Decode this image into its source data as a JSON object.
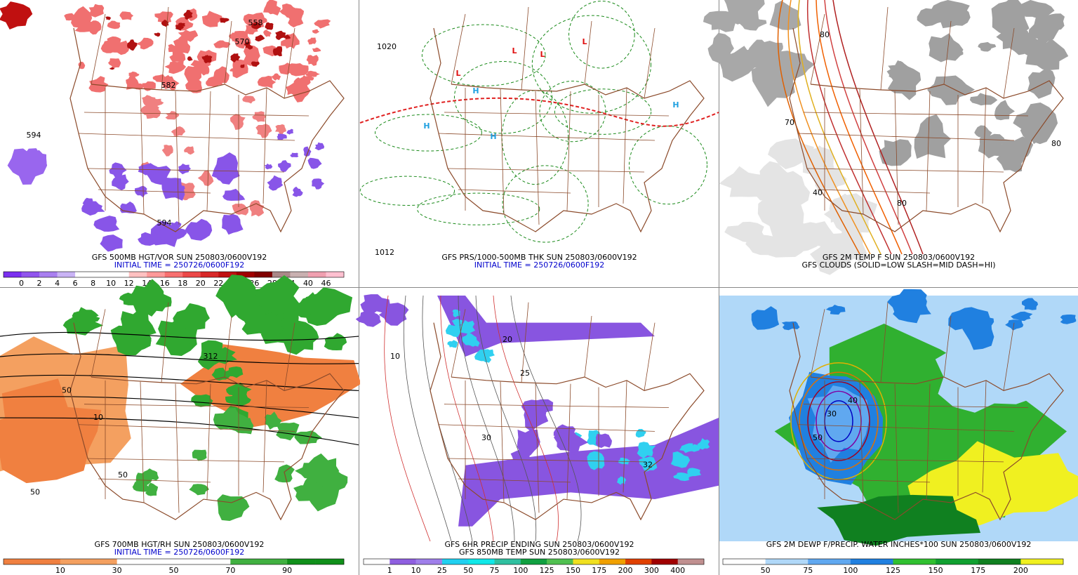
{
  "panels": [
    {
      "caption": [
        "GFS 500MB HGT/VOR SUN 250803/0600V192",
        "INITIAL TIME = 250726/0600F192"
      ],
      "caption_colors": [
        "#000000",
        "#0000cc"
      ],
      "colorbar": {
        "labels": [
          0,
          2,
          4,
          6,
          8,
          10,
          12,
          14,
          16,
          18,
          20,
          22,
          24,
          26,
          28,
          34,
          40,
          46
        ],
        "colors": [
          "#7b2ff0",
          "#9155ee",
          "#a97ff0",
          "#c9b3f5",
          "#ffffff",
          "#ffffff",
          "#ffffff",
          "#ffc0c0",
          "#ff9999",
          "#f87070",
          "#ec4848",
          "#d82828",
          "#c01010",
          "#a00000",
          "#800000",
          "#aa8888",
          "#c8b0b0",
          "#f0a0b0",
          "#ffc0d0"
        ]
      },
      "map_labels": [
        "594",
        "582",
        "570",
        "558",
        "594"
      ]
    },
    {
      "caption": [
        "GFS PRS/1000-500MB THK SUN 250803/0600V192",
        "INITIAL TIME = 250726/0600F192"
      ],
      "caption_colors": [
        "#000000",
        "#0000cc"
      ],
      "map_labels": [
        "1020",
        "L",
        "L",
        "L",
        "L",
        "H",
        "H",
        "H",
        "H",
        "1012"
      ]
    },
    {
      "caption": [
        "GFS 2M TEMP F SUN 250803/0600V192",
        "GFS CLOUDS (SOLID=LOW SLASH=MID DASH=HI)"
      ],
      "caption_colors": [
        "#000000",
        "#000000"
      ],
      "map_labels": [
        "80",
        "80",
        "70",
        "40",
        "80"
      ]
    },
    {
      "caption": [
        "GFS 700MB HGT/RH SUN 250803/0600V192",
        "INITIAL TIME = 250726/0600F192"
      ],
      "caption_colors": [
        "#000000",
        "#0000cc"
      ],
      "colorbar": {
        "labels": [
          10,
          30,
          50,
          70,
          90
        ],
        "colors": [
          "#f08040",
          "#f08040",
          "#f4a060",
          "#f4a060",
          "#ffffff",
          "#ffffff",
          "#ffffff",
          "#ffffff",
          "#40b040",
          "#40b040",
          "#10901a",
          "#10901a"
        ]
      },
      "map_labels": [
        "50",
        "50",
        "10",
        "312",
        "50"
      ]
    },
    {
      "caption": [
        "GFS 6HR PRECIP ENDING SUN 250803/0600V192",
        "GFS 850MB TEMP SUN 250803/0600V192"
      ],
      "caption_colors": [
        "#000000",
        "#000000"
      ],
      "colorbar": {
        "labels": [
          1,
          10,
          25,
          50,
          75,
          100,
          125,
          150,
          175,
          200,
          300,
          400
        ],
        "colors": [
          "#ffffff",
          "#8f5fe0",
          "#9f7fea",
          "#20d0f0",
          "#10e8e8",
          "#30c0a0",
          "#10a040",
          "#50c050",
          "#f0e020",
          "#f0a000",
          "#e04000",
          "#a00000",
          "#c09090"
        ]
      },
      "map_labels": [
        "10",
        "20",
        "25",
        "30",
        "32"
      ]
    },
    {
      "caption": [
        "GFS 2M DEWP F/PRECIP. WATER INCHES*100 SUN 250803/0600V192"
      ],
      "caption_colors": [
        "#000000"
      ],
      "colorbar": {
        "labels": [
          50,
          75,
          100,
          125,
          150,
          175,
          200
        ],
        "colors": [
          "#ffffff",
          "#b0d8f8",
          "#60a8f0",
          "#2080e0",
          "#30c030",
          "#10a030",
          "#108020",
          "#f0f020"
        ]
      },
      "map_labels": [
        "30",
        "40",
        "50"
      ]
    }
  ]
}
